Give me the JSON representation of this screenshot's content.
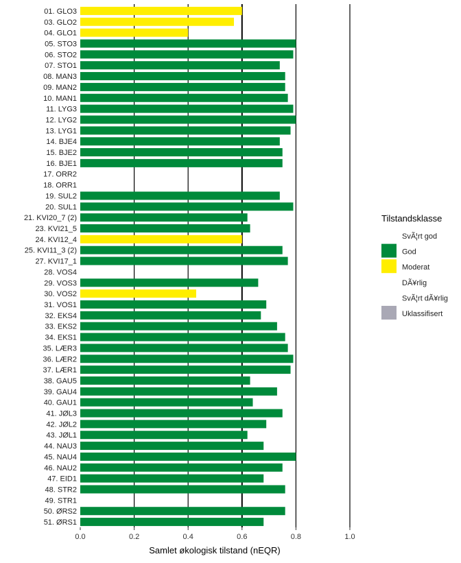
{
  "chart_data": {
    "type": "bar",
    "orientation": "horizontal",
    "xlabel": "Samlet økologisk tilstand (nEQR)",
    "ylabel": "",
    "xlim": [
      0,
      1.0
    ],
    "xticks": [
      "0.0",
      "0.2",
      "0.4",
      "0.6",
      "0.8",
      "1.0"
    ],
    "vertical_reference_lines": [
      0.2,
      0.4,
      0.6,
      0.8,
      1.0
    ],
    "grid": false,
    "categories": [
      "01. GLO3",
      "03. GLO2",
      "04. GLO1",
      "05. STO3",
      "06. STO2",
      "07. STO1",
      "08. MAN3",
      "09. MAN2",
      "10. MAN1",
      "11. LYG3",
      "12. LYG2",
      "13. LYG1",
      "14. BJE4",
      "15. BJE2",
      "16. BJE1",
      "17. ORR2",
      "18. ORR1",
      "19. SUL2",
      "20. SUL1",
      "21. KVI20_7 (2)",
      "23. KVI21_5",
      "24. KVI12_4",
      "25. KVI11_3 (2)",
      "27. KVI17_1",
      "28. VOS4",
      "29. VOS3",
      "30. VOS2",
      "31. VOS1",
      "32. EKS4",
      "33. EKS2",
      "34. EKS1",
      "35. LÆR3",
      "36. LÆR2",
      "37. LÆR1",
      "38. GAU5",
      "39. GAU4",
      "40. GAU1",
      "41. JØL3",
      "42. JØL2",
      "43. JØL1",
      "44. NAU3",
      "45. NAU4",
      "46. NAU2",
      "47. EID1",
      "48. STR2",
      "49. STR1",
      "50. ØRS2",
      "51. ØRS1"
    ],
    "values": [
      0.6,
      0.57,
      0.4,
      0.8,
      0.79,
      0.74,
      0.76,
      0.76,
      0.77,
      0.79,
      0.8,
      0.78,
      0.74,
      0.75,
      0.75,
      null,
      null,
      0.74,
      0.79,
      0.62,
      0.63,
      0.6,
      0.75,
      0.77,
      null,
      0.66,
      0.43,
      0.69,
      0.67,
      0.73,
      0.76,
      0.77,
      0.79,
      0.78,
      0.63,
      0.73,
      0.64,
      0.75,
      0.69,
      0.62,
      0.68,
      0.8,
      0.75,
      0.68,
      0.76,
      null,
      0.76,
      0.68
    ],
    "classes": [
      "Moderat",
      "Moderat",
      "Moderat",
      "God",
      "God",
      "God",
      "God",
      "God",
      "God",
      "God",
      "God",
      "God",
      "God",
      "God",
      "God",
      null,
      null,
      "God",
      "God",
      "God",
      "God",
      "Moderat",
      "God",
      "God",
      null,
      "God",
      "Moderat",
      "God",
      "God",
      "God",
      "God",
      "God",
      "God",
      "God",
      "God",
      "God",
      "God",
      "God",
      "God",
      "God",
      "God",
      "God",
      "God",
      "God",
      "God",
      null,
      "God",
      "God"
    ],
    "legend": {
      "title": "Tilstandsklasse",
      "position": "right",
      "entries": [
        {
          "label": "SvÃ¦rt god",
          "color": null
        },
        {
          "label": "God",
          "color": "#008A3B"
        },
        {
          "label": "Moderat",
          "color": "#FFEE00"
        },
        {
          "label": "DÃ¥rlig",
          "color": null
        },
        {
          "label": "SvÃ¦rt dÃ¥rlig",
          "color": null
        },
        {
          "label": "Uklassifisert",
          "color": "#A9A8B5"
        }
      ]
    },
    "colors": {
      "God": "#008A3B",
      "Moderat": "#FFEE00",
      "Uklassifisert": "#A9A8B5"
    }
  }
}
